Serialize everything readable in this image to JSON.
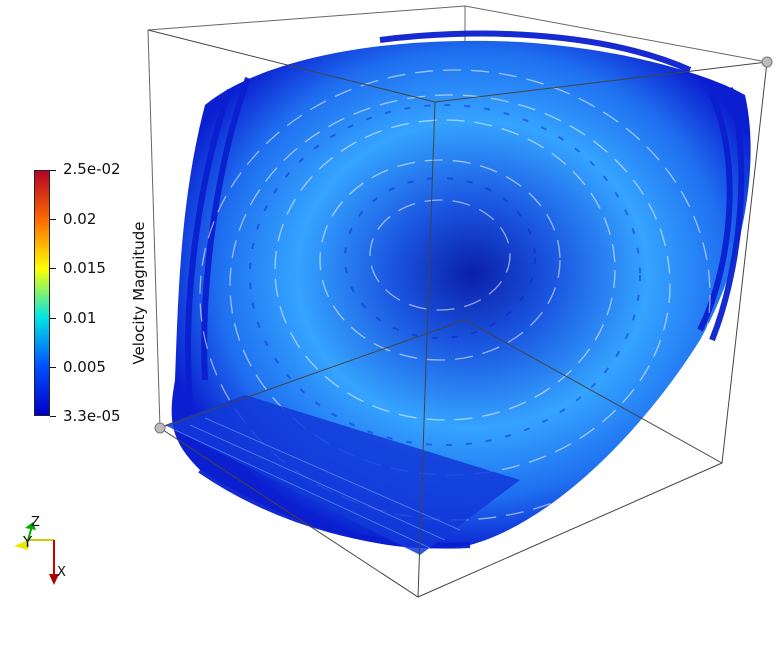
{
  "colorbar": {
    "title": "Velocity Magnitude",
    "ticks": [
      "2.5e-02",
      "0.02",
      "0.015",
      "0.01",
      "0.005",
      "3.3e-05"
    ],
    "colors": [
      "#b40426",
      "#ff6a00",
      "#ffff00",
      "#00e5e5",
      "#0050ff",
      "#0000c8"
    ]
  },
  "axes_triad": {
    "x": "X",
    "y": "Y",
    "z": "Z"
  },
  "colors": {
    "background": "#ffffff",
    "box_edges": "#555555",
    "streamline_dark": "#0a1fcf",
    "streamline_mid": "#1d6ef2",
    "streamline_light": "#4fb8ff"
  }
}
